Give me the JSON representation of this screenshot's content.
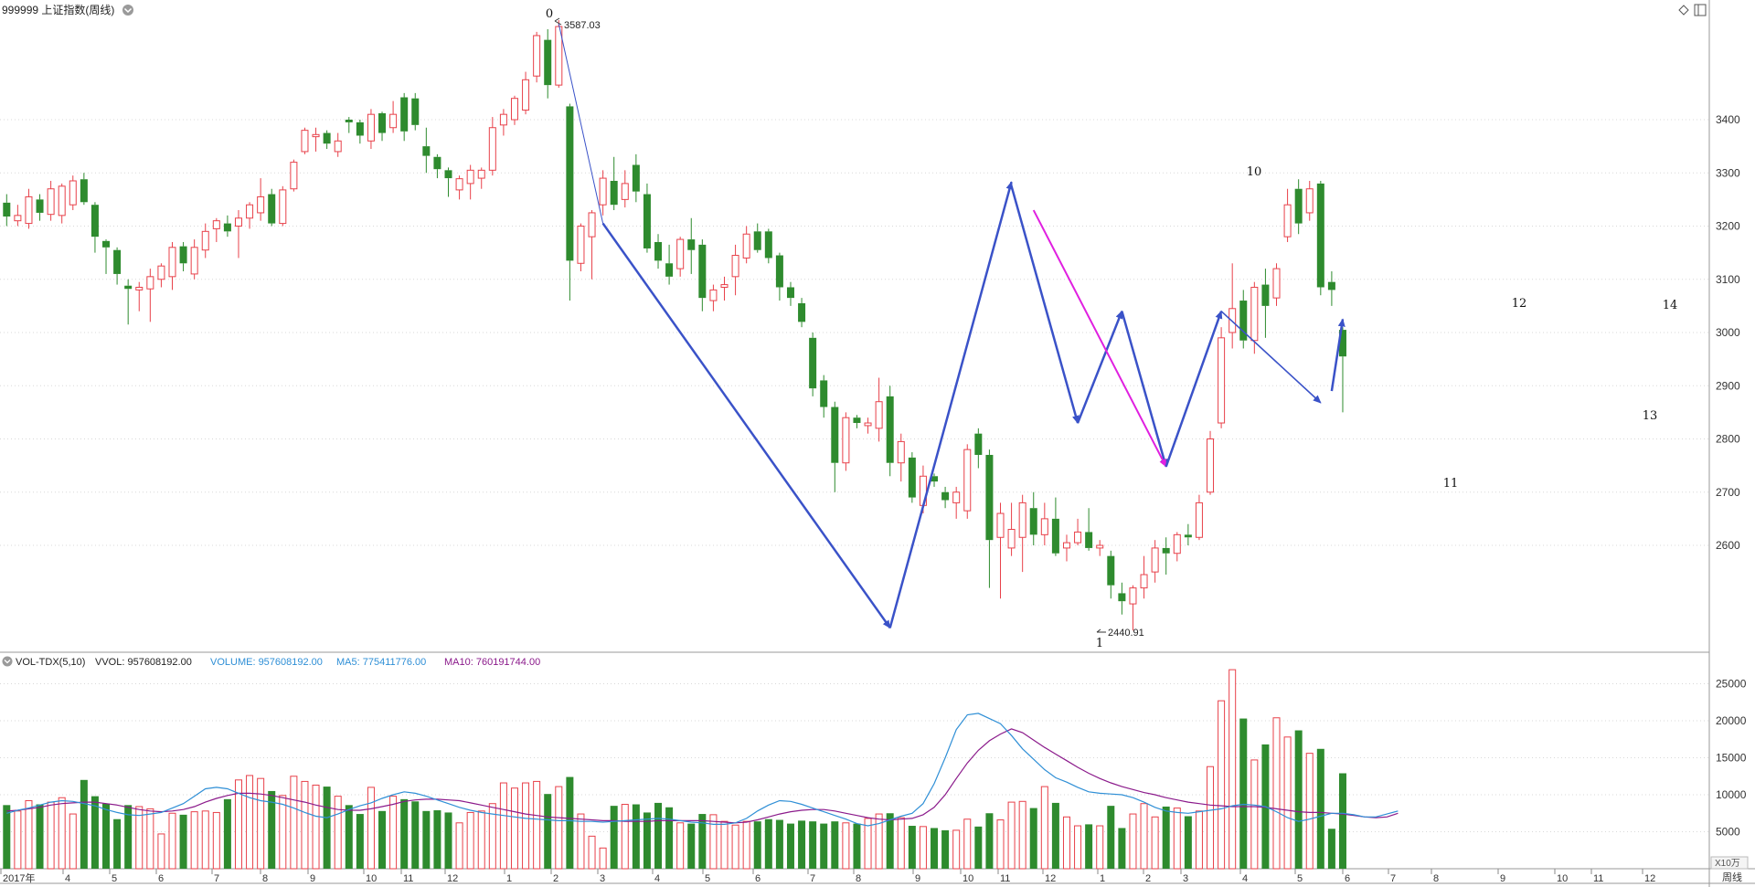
{
  "header": {
    "title": "999999 上证指数(周线)"
  },
  "volume_header": {
    "indicator": "VOL-TDX(5,10)",
    "vvol": "VVOL: 957608192.00",
    "volume": "VOLUME: 957608192.00",
    "ma5": "MA5: 775411776.00",
    "ma10": "MA10: 760191744.00"
  },
  "price_axis_ticks": [
    "3400",
    "3300",
    "3200",
    "3100",
    "3000",
    "2900",
    "2800",
    "2700",
    "2600"
  ],
  "volume_axis_ticks": [
    "25000",
    "20000",
    "15000",
    "10000",
    "5000"
  ],
  "volume_unit": "X10万",
  "period_button": "周线",
  "x_axis_labels": [
    "2017年",
    "4",
    "5",
    "6",
    "7",
    "8",
    "9",
    "10",
    "11",
    "12",
    "1",
    "2",
    "3",
    "4",
    "5",
    "6",
    "7",
    "8",
    "9",
    "10",
    "11",
    "12",
    "1",
    "2",
    "3",
    "4",
    "5",
    "6",
    "7",
    "8",
    "9",
    "10",
    "11",
    "12"
  ],
  "annotations": {
    "high_value": "3587.03",
    "low_value": "2440.91",
    "wave_labels": [
      "0",
      "1",
      "10",
      "11",
      "12",
      "13",
      "14"
    ]
  },
  "colors": {
    "up": "#e8414a",
    "down": "#2e8b2e",
    "wave": "#3a52c8",
    "wave_alt": "#e020e0",
    "ma5": "#2f8fd6",
    "ma10": "#8b1a8b"
  },
  "chart_data": {
    "type": "candlestick",
    "price_ylim": [
      2400,
      3620
    ],
    "volume_ylim": [
      0,
      27500
    ],
    "volume_ma5": [
      7500,
      7900,
      8200,
      8600,
      9000,
      9200,
      9100,
      8800,
      8500,
      8000,
      7600,
      7300,
      7200,
      7400,
      7600,
      8200,
      8800,
      9800,
      10800,
      11000,
      10800,
      10200,
      9600,
      9200,
      9000,
      8700,
      8200,
      7600,
      7100,
      6900,
      7400,
      8000,
      8500,
      8900,
      9500,
      10000,
      10400,
      10200,
      9800,
      9300,
      8800,
      8300,
      7900,
      7600,
      7400,
      7200,
      7000,
      6800,
      6700,
      6600,
      6500,
      6500,
      6400,
      6400,
      6300,
      6400,
      6500,
      6600,
      6700,
      6800,
      6700,
      6500,
      6300,
      6200,
      6000,
      6000,
      6200,
      6800,
      7800,
      8600,
      9200,
      9100,
      8700,
      8200,
      7700,
      7200,
      6700,
      6100,
      5800,
      6100,
      6600,
      7100,
      7500,
      8800,
      11500,
      15000,
      18800,
      20800,
      21000,
      20300,
      19600,
      18000,
      16200,
      14800,
      13400,
      12300,
      11700,
      11000,
      10400,
      10200,
      10100,
      10000,
      9600,
      9000,
      8300,
      7800,
      7600,
      7500,
      7700,
      7900,
      8100,
      8500,
      8700,
      8600,
      8400,
      7700,
      6900,
      6400,
      6700,
      7100,
      7500,
      7500,
      7300,
      7000,
      7000,
      7400,
      7800
    ],
    "volume_ma10": [
      7800,
      7900,
      8100,
      8300,
      8600,
      8800,
      8900,
      9000,
      9000,
      8800,
      8600,
      8300,
      8000,
      7800,
      7700,
      7800,
      8000,
      8400,
      9000,
      9500,
      9900,
      10200,
      10200,
      10100,
      9900,
      9600,
      9300,
      9000,
      8600,
      8300,
      8000,
      7900,
      7900,
      8100,
      8400,
      8700,
      9100,
      9300,
      9400,
      9400,
      9300,
      9200,
      8900,
      8600,
      8300,
      8000,
      7700,
      7400,
      7200,
      7000,
      6900,
      6800,
      6700,
      6600,
      6500,
      6500,
      6400,
      6400,
      6400,
      6500,
      6500,
      6500,
      6500,
      6500,
      6400,
      6300,
      6200,
      6300,
      6600,
      7000,
      7400,
      7700,
      7900,
      8000,
      8000,
      7800,
      7500,
      7200,
      6900,
      6700,
      6600,
      6700,
      6800,
      7300,
      8300,
      10000,
      12200,
      14300,
      16000,
      17300,
      18200,
      18900,
      18400,
      17400,
      16400,
      15500,
      14600,
      13700,
      12900,
      12200,
      11600,
      11100,
      10700,
      10300,
      10000,
      9600,
      9300,
      9000,
      8800,
      8600,
      8500,
      8400,
      8400,
      8400,
      8300,
      8100,
      7900,
      7700,
      7600,
      7600,
      7500,
      7400,
      7200,
      7000,
      6900,
      7000,
      7500
    ],
    "candles": [
      {
        "o": 3244,
        "c": 3218,
        "h": 3260,
        "l": 3200,
        "v": 8600
      },
      {
        "o": 3210,
        "c": 3220,
        "h": 3240,
        "l": 3200,
        "v": 7800
      },
      {
        "o": 3205,
        "c": 3255,
        "h": 3270,
        "l": 3195,
        "v": 9200
      },
      {
        "o": 3250,
        "c": 3225,
        "h": 3260,
        "l": 3210,
        "v": 8700
      },
      {
        "o": 3222,
        "c": 3270,
        "h": 3285,
        "l": 3210,
        "v": 9000
      },
      {
        "o": 3220,
        "c": 3275,
        "h": 3280,
        "l": 3205,
        "v": 9600
      },
      {
        "o": 3240,
        "c": 3285,
        "h": 3295,
        "l": 3230,
        "v": 7400
      },
      {
        "o": 3288,
        "c": 3245,
        "h": 3300,
        "l": 3240,
        "v": 12000
      },
      {
        "o": 3240,
        "c": 3180,
        "h": 3245,
        "l": 3150,
        "v": 9800
      },
      {
        "o": 3172,
        "c": 3160,
        "h": 3175,
        "l": 3110,
        "v": 8800
      },
      {
        "o": 3155,
        "c": 3110,
        "h": 3160,
        "l": 3090,
        "v": 6700
      },
      {
        "o": 3088,
        "c": 3082,
        "h": 3100,
        "l": 3015,
        "v": 8600
      },
      {
        "o": 3080,
        "c": 3085,
        "h": 3095,
        "l": 3040,
        "v": 8400
      },
      {
        "o": 3082,
        "c": 3105,
        "h": 3120,
        "l": 3020,
        "v": 8100
      },
      {
        "o": 3100,
        "c": 3125,
        "h": 3130,
        "l": 3085,
        "v": 4700
      },
      {
        "o": 3105,
        "c": 3160,
        "h": 3170,
        "l": 3080,
        "v": 7500
      },
      {
        "o": 3162,
        "c": 3130,
        "h": 3170,
        "l": 3115,
        "v": 7300
      },
      {
        "o": 3110,
        "c": 3160,
        "h": 3175,
        "l": 3100,
        "v": 7700
      },
      {
        "o": 3155,
        "c": 3190,
        "h": 3205,
        "l": 3140,
        "v": 7800
      },
      {
        "o": 3195,
        "c": 3210,
        "h": 3215,
        "l": 3170,
        "v": 7600
      },
      {
        "o": 3205,
        "c": 3190,
        "h": 3220,
        "l": 3180,
        "v": 9400
      },
      {
        "o": 3200,
        "c": 3215,
        "h": 3230,
        "l": 3140,
        "v": 12000
      },
      {
        "o": 3215,
        "c": 3240,
        "h": 3245,
        "l": 3195,
        "v": 12600
      },
      {
        "o": 3225,
        "c": 3255,
        "h": 3290,
        "l": 3210,
        "v": 12200
      },
      {
        "o": 3260,
        "c": 3205,
        "h": 3270,
        "l": 3200,
        "v": 10500
      },
      {
        "o": 3205,
        "c": 3268,
        "h": 3275,
        "l": 3200,
        "v": 9900
      },
      {
        "o": 3270,
        "c": 3320,
        "h": 3325,
        "l": 3265,
        "v": 12500
      },
      {
        "o": 3340,
        "c": 3380,
        "h": 3385,
        "l": 3335,
        "v": 11800
      },
      {
        "o": 3368,
        "c": 3372,
        "h": 3385,
        "l": 3340,
        "v": 11300
      },
      {
        "o": 3375,
        "c": 3355,
        "h": 3380,
        "l": 3345,
        "v": 11100
      },
      {
        "o": 3340,
        "c": 3360,
        "h": 3375,
        "l": 3330,
        "v": 9800
      },
      {
        "o": 3400,
        "c": 3395,
        "h": 3405,
        "l": 3375,
        "v": 8600
      },
      {
        "o": 3395,
        "c": 3370,
        "h": 3400,
        "l": 3355,
        "v": 7400
      },
      {
        "o": 3360,
        "c": 3410,
        "h": 3420,
        "l": 3345,
        "v": 11000
      },
      {
        "o": 3412,
        "c": 3375,
        "h": 3415,
        "l": 3360,
        "v": 7800
      },
      {
        "o": 3385,
        "c": 3410,
        "h": 3435,
        "l": 3375,
        "v": 9800
      },
      {
        "o": 3442,
        "c": 3378,
        "h": 3450,
        "l": 3360,
        "v": 9400
      },
      {
        "o": 3440,
        "c": 3390,
        "h": 3450,
        "l": 3380,
        "v": 9100
      },
      {
        "o": 3350,
        "c": 3332,
        "h": 3385,
        "l": 3300,
        "v": 7800
      },
      {
        "o": 3330,
        "c": 3307,
        "h": 3335,
        "l": 3290,
        "v": 7900
      },
      {
        "o": 3305,
        "c": 3290,
        "h": 3310,
        "l": 3255,
        "v": 7600
      },
      {
        "o": 3268,
        "c": 3289,
        "h": 3295,
        "l": 3250,
        "v": 6200
      },
      {
        "o": 3280,
        "c": 3305,
        "h": 3315,
        "l": 3250,
        "v": 7600
      },
      {
        "o": 3290,
        "c": 3305,
        "h": 3310,
        "l": 3270,
        "v": 7800
      },
      {
        "o": 3305,
        "c": 3385,
        "h": 3405,
        "l": 3295,
        "v": 8800
      },
      {
        "o": 3390,
        "c": 3410,
        "h": 3420,
        "l": 3370,
        "v": 11600
      },
      {
        "o": 3400,
        "c": 3440,
        "h": 3445,
        "l": 3390,
        "v": 10900
      },
      {
        "o": 3418,
        "c": 3475,
        "h": 3490,
        "l": 3410,
        "v": 11600
      },
      {
        "o": 3482,
        "c": 3558,
        "h": 3565,
        "l": 3470,
        "v": 11800
      },
      {
        "o": 3550,
        "c": 3465,
        "h": 3570,
        "l": 3440,
        "v": 10100
      },
      {
        "o": 3465,
        "c": 3575,
        "h": 3587,
        "l": 3460,
        "v": 11100
      },
      {
        "o": 3425,
        "c": 3135,
        "h": 3430,
        "l": 3060,
        "v": 12400
      },
      {
        "o": 3130,
        "c": 3200,
        "h": 3205,
        "l": 3115,
        "v": 7400
      },
      {
        "o": 3180,
        "c": 3225,
        "h": 3230,
        "l": 3100,
        "v": 4400
      },
      {
        "o": 3240,
        "c": 3290,
        "h": 3305,
        "l": 3220,
        "v": 2800
      },
      {
        "o": 3285,
        "c": 3240,
        "h": 3330,
        "l": 3230,
        "v": 8500
      },
      {
        "o": 3250,
        "c": 3280,
        "h": 3305,
        "l": 3235,
        "v": 8700
      },
      {
        "o": 3315,
        "c": 3265,
        "h": 3335,
        "l": 3245,
        "v": 8700
      },
      {
        "o": 3260,
        "c": 3158,
        "h": 3280,
        "l": 3150,
        "v": 7600
      },
      {
        "o": 3170,
        "c": 3135,
        "h": 3185,
        "l": 3120,
        "v": 8900
      },
      {
        "o": 3130,
        "c": 3105,
        "h": 3165,
        "l": 3090,
        "v": 8300
      },
      {
        "o": 3120,
        "c": 3175,
        "h": 3180,
        "l": 3105,
        "v": 6200
      },
      {
        "o": 3175,
        "c": 3155,
        "h": 3215,
        "l": 3110,
        "v": 6100
      },
      {
        "o": 3165,
        "c": 3065,
        "h": 3175,
        "l": 3040,
        "v": 7400
      },
      {
        "o": 3060,
        "c": 3080,
        "h": 3090,
        "l": 3040,
        "v": 7300
      },
      {
        "o": 3085,
        "c": 3090,
        "h": 3105,
        "l": 3060,
        "v": 6400
      },
      {
        "o": 3105,
        "c": 3145,
        "h": 3165,
        "l": 3070,
        "v": 5900
      },
      {
        "o": 3140,
        "c": 3185,
        "h": 3200,
        "l": 3130,
        "v": 6400
      },
      {
        "o": 3190,
        "c": 3155,
        "h": 3205,
        "l": 3150,
        "v": 6400
      },
      {
        "o": 3190,
        "c": 3140,
        "h": 3195,
        "l": 3130,
        "v": 6700
      },
      {
        "o": 3145,
        "c": 3085,
        "h": 3150,
        "l": 3060,
        "v": 6600
      },
      {
        "o": 3085,
        "c": 3065,
        "h": 3095,
        "l": 3050,
        "v": 6100
      },
      {
        "o": 3055,
        "c": 3020,
        "h": 3065,
        "l": 3010,
        "v": 6500
      },
      {
        "o": 2990,
        "c": 2895,
        "h": 3000,
        "l": 2880,
        "v": 6400
      },
      {
        "o": 2910,
        "c": 2860,
        "h": 2920,
        "l": 2840,
        "v": 6100
      },
      {
        "o": 2860,
        "c": 2755,
        "h": 2870,
        "l": 2700,
        "v": 6400
      },
      {
        "o": 2755,
        "c": 2840,
        "h": 2850,
        "l": 2740,
        "v": 6200
      },
      {
        "o": 2840,
        "c": 2830,
        "h": 2845,
        "l": 2820,
        "v": 6100
      },
      {
        "o": 2825,
        "c": 2830,
        "h": 2840,
        "l": 2810,
        "v": 6800
      },
      {
        "o": 2820,
        "c": 2870,
        "h": 2915,
        "l": 2795,
        "v": 7400
      },
      {
        "o": 2880,
        "c": 2755,
        "h": 2900,
        "l": 2730,
        "v": 7500
      },
      {
        "o": 2755,
        "c": 2795,
        "h": 2810,
        "l": 2720,
        "v": 6900
      },
      {
        "o": 2765,
        "c": 2690,
        "h": 2775,
        "l": 2680,
        "v": 5800
      },
      {
        "o": 2675,
        "c": 2730,
        "h": 2750,
        "l": 2660,
        "v": 5700
      },
      {
        "o": 2730,
        "c": 2720,
        "h": 2735,
        "l": 2710,
        "v": 5500
      },
      {
        "o": 2700,
        "c": 2685,
        "h": 2710,
        "l": 2670,
        "v": 5200
      },
      {
        "o": 2680,
        "c": 2700,
        "h": 2710,
        "l": 2650,
        "v": 5200
      },
      {
        "o": 2665,
        "c": 2780,
        "h": 2790,
        "l": 2650,
        "v": 6700
      },
      {
        "o": 2810,
        "c": 2770,
        "h": 2820,
        "l": 2745,
        "v": 5700
      },
      {
        "o": 2770,
        "c": 2610,
        "h": 2780,
        "l": 2520,
        "v": 7500
      },
      {
        "o": 2615,
        "c": 2660,
        "h": 2680,
        "l": 2500,
        "v": 6600
      },
      {
        "o": 2595,
        "c": 2630,
        "h": 2680,
        "l": 2580,
        "v": 9000
      },
      {
        "o": 2615,
        "c": 2680,
        "h": 2695,
        "l": 2550,
        "v": 9100
      },
      {
        "o": 2670,
        "c": 2620,
        "h": 2700,
        "l": 2600,
        "v": 8200
      },
      {
        "o": 2620,
        "c": 2650,
        "h": 2680,
        "l": 2600,
        "v": 11100
      },
      {
        "o": 2650,
        "c": 2585,
        "h": 2690,
        "l": 2580,
        "v": 8900
      },
      {
        "o": 2595,
        "c": 2605,
        "h": 2620,
        "l": 2570,
        "v": 7000
      },
      {
        "o": 2605,
        "c": 2625,
        "h": 2650,
        "l": 2600,
        "v": 5800
      },
      {
        "o": 2625,
        "c": 2595,
        "h": 2670,
        "l": 2590,
        "v": 6000
      },
      {
        "o": 2595,
        "c": 2600,
        "h": 2610,
        "l": 2580,
        "v": 5800
      },
      {
        "o": 2580,
        "c": 2525,
        "h": 2590,
        "l": 2500,
        "v": 8500
      },
      {
        "o": 2510,
        "c": 2495,
        "h": 2530,
        "l": 2470,
        "v": 5500
      },
      {
        "o": 2490,
        "c": 2520,
        "h": 2525,
        "l": 2440,
        "v": 7400
      },
      {
        "o": 2520,
        "c": 2545,
        "h": 2580,
        "l": 2500,
        "v": 8800
      },
      {
        "o": 2550,
        "c": 2595,
        "h": 2610,
        "l": 2530,
        "v": 7000
      },
      {
        "o": 2595,
        "c": 2585,
        "h": 2615,
        "l": 2545,
        "v": 8400
      },
      {
        "o": 2585,
        "c": 2620,
        "h": 2625,
        "l": 2570,
        "v": 8200
      },
      {
        "o": 2620,
        "c": 2615,
        "h": 2640,
        "l": 2600,
        "v": 7100
      },
      {
        "o": 2615,
        "c": 2680,
        "h": 2695,
        "l": 2610,
        "v": 7800
      },
      {
        "o": 2700,
        "c": 2800,
        "h": 2815,
        "l": 2695,
        "v": 13800
      },
      {
        "o": 2830,
        "c": 2990,
        "h": 3010,
        "l": 2820,
        "v": 22700
      },
      {
        "o": 3000,
        "c": 3045,
        "h": 3130,
        "l": 2970,
        "v": 26900
      },
      {
        "o": 3060,
        "c": 2985,
        "h": 3080,
        "l": 2970,
        "v": 20300
      },
      {
        "o": 2985,
        "c": 3085,
        "h": 3095,
        "l": 2960,
        "v": 14700
      },
      {
        "o": 3090,
        "c": 3050,
        "h": 3120,
        "l": 2990,
        "v": 16800
      },
      {
        "o": 3065,
        "c": 3120,
        "h": 3130,
        "l": 3050,
        "v": 20400
      },
      {
        "o": 3180,
        "c": 3240,
        "h": 3270,
        "l": 3170,
        "v": 17800
      },
      {
        "o": 3270,
        "c": 3205,
        "h": 3288,
        "l": 3185,
        "v": 18700
      },
      {
        "o": 3225,
        "c": 3270,
        "h": 3285,
        "l": 3210,
        "v": 15600
      },
      {
        "o": 3280,
        "c": 3085,
        "h": 3285,
        "l": 3070,
        "v": 16200
      },
      {
        "o": 3095,
        "c": 3080,
        "h": 3115,
        "l": 3050,
        "v": 5400
      },
      {
        "o": 3005,
        "c": 2955,
        "h": 3010,
        "l": 2850,
        "v": 12900
      }
    ]
  }
}
